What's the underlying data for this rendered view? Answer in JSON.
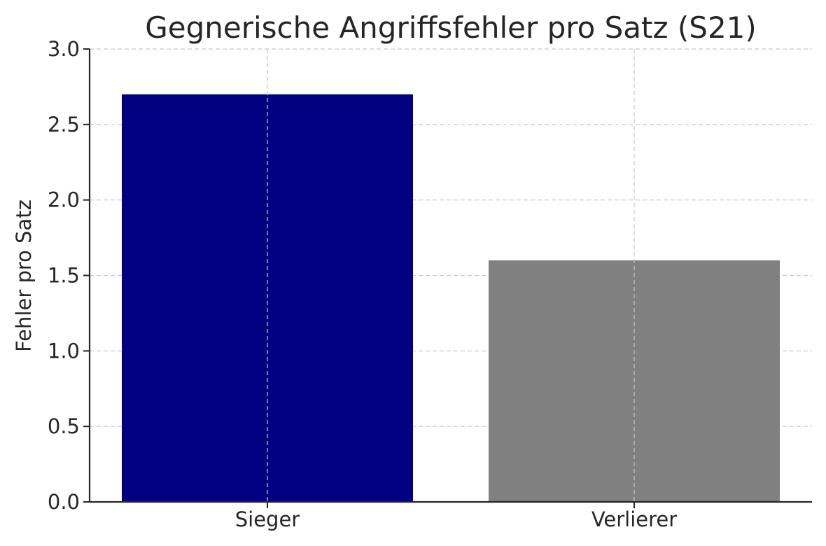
{
  "chart_data": {
    "type": "bar",
    "title": "Gegnerische Angriffsfehler pro Satz (S21)",
    "xlabel": "",
    "ylabel": "Fehler pro Satz",
    "categories": [
      "Sieger",
      "Verlierer"
    ],
    "values": [
      2.7,
      1.6
    ],
    "colors": [
      "#000080",
      "#808080"
    ],
    "ylim": [
      0,
      3.0
    ],
    "yticks": [
      "0.0",
      "0.5",
      "1.0",
      "1.5",
      "2.0",
      "2.5",
      "3.0"
    ],
    "grid": true,
    "legend": "none"
  }
}
